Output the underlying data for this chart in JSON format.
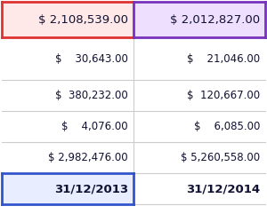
{
  "col1": [
    "$ 2,108,539.00",
    "$    30,643.00",
    "$  380,232.00",
    "$    4,076.00",
    "$ 2,982,476.00",
    "31/12/2013"
  ],
  "col2": [
    "$ 2,012,827.00",
    "$    21,046.00",
    "$  120,667.00",
    "$    6,085.00",
    "$ 5,260,558.00",
    "31/12/2014"
  ],
  "bg_color": "#ffffff",
  "row0_bg_col1": "#ffe8e8",
  "row0_bg_col2": "#eedfff",
  "last_row_bg_col1": "#e8eeff",
  "grid_color": "#cccccc",
  "border_red": "#dd3333",
  "border_purple": "#7733bb",
  "border_blue": "#3355cc",
  "text_color": "#111133",
  "font_size_row0": 9.5,
  "font_size_other": 8.5,
  "font_size_date": 9.5
}
